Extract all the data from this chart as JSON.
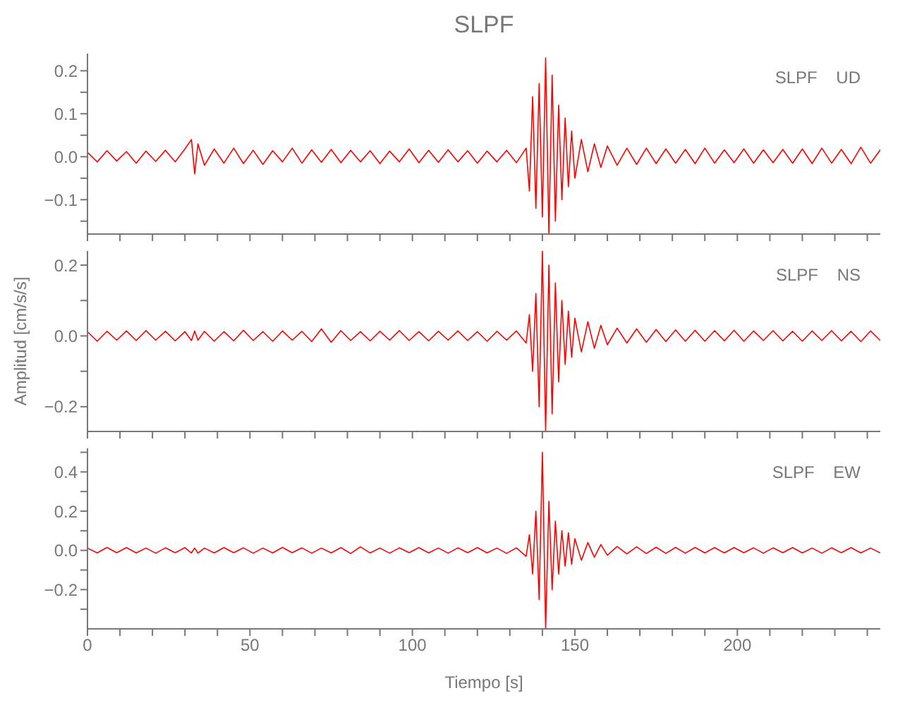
{
  "chart_data": [
    {
      "type": "line",
      "title": "SLPF",
      "annotations": [
        "SLPF UD"
      ],
      "tick_labels": "y",
      "grid": false,
      "marker": "none",
      "line_style": "solid",
      "x": [
        0,
        3,
        6,
        9,
        12,
        15,
        18,
        21,
        24,
        27,
        30,
        32,
        33,
        34,
        36,
        39,
        42,
        45,
        48,
        51,
        54,
        57,
        60,
        63,
        66,
        69,
        72,
        75,
        78,
        81,
        84,
        87,
        90,
        93,
        96,
        99,
        102,
        105,
        108,
        111,
        114,
        117,
        120,
        123,
        126,
        129,
        132,
        135,
        136,
        137,
        138,
        139,
        140,
        141,
        142,
        143,
        144,
        145,
        146,
        147,
        148,
        149,
        150,
        152,
        154,
        156,
        158,
        160,
        163,
        166,
        169,
        172,
        175,
        178,
        181,
        184,
        187,
        190,
        193,
        196,
        199,
        202,
        205,
        208,
        211,
        214,
        217,
        220,
        223,
        226,
        229,
        232,
        235,
        238,
        241,
        244
      ],
      "series": [
        {
          "color": "#ff0000",
          "values": [
            0.01,
            -0.012,
            0.014,
            -0.01,
            0.012,
            -0.015,
            0.013,
            -0.011,
            0.015,
            -0.012,
            0.018,
            0.04,
            -0.04,
            0.03,
            -0.02,
            0.018,
            -0.015,
            0.02,
            -0.016,
            0.015,
            -0.018,
            0.014,
            -0.012,
            0.02,
            -0.015,
            0.016,
            -0.013,
            0.017,
            -0.014,
            0.015,
            -0.012,
            0.014,
            -0.016,
            0.013,
            -0.012,
            0.018,
            -0.014,
            0.015,
            -0.013,
            0.016,
            -0.012,
            0.014,
            -0.015,
            0.013,
            -0.012,
            0.015,
            -0.014,
            0.02,
            -0.08,
            0.14,
            -0.12,
            0.17,
            -0.14,
            0.23,
            -0.18,
            0.19,
            -0.15,
            0.12,
            -0.1,
            0.09,
            -0.07,
            0.06,
            -0.05,
            0.04,
            -0.035,
            0.03,
            -0.025,
            0.025,
            -0.02,
            0.02,
            -0.018,
            0.02,
            -0.016,
            0.018,
            -0.015,
            0.017,
            -0.016,
            0.02,
            -0.015,
            0.016,
            -0.014,
            0.018,
            -0.015,
            0.016,
            -0.014,
            0.017,
            -0.015,
            0.018,
            -0.016,
            0.02,
            -0.015,
            0.017,
            -0.016,
            0.022,
            -0.015,
            0.016
          ]
        }
      ],
      "xlim": [
        0,
        244
      ],
      "xticks": [
        0,
        {
          "value": 10,
          "label": null
        },
        {
          "value": 20,
          "label": null
        },
        {
          "value": 30,
          "label": null
        },
        {
          "value": 40,
          "label": null
        },
        50,
        {
          "value": 60,
          "label": null
        },
        {
          "value": 70,
          "label": null
        },
        {
          "value": 80,
          "label": null
        },
        {
          "value": 90,
          "label": null
        },
        100,
        {
          "value": 110,
          "label": null
        },
        {
          "value": 120,
          "label": null
        },
        {
          "value": 130,
          "label": null
        },
        {
          "value": 140,
          "label": null
        },
        150,
        {
          "value": 160,
          "label": null
        },
        {
          "value": 170,
          "label": null
        },
        {
          "value": 180,
          "label": null
        },
        {
          "value": 190,
          "label": null
        },
        200,
        {
          "value": 210,
          "label": null
        },
        {
          "value": 220,
          "label": null
        },
        {
          "value": 230,
          "label": null
        },
        {
          "value": 240,
          "label": null
        }
      ],
      "ylim": [
        -0.18,
        0.24
      ],
      "yticks": [
        {
          "value": -0.15,
          "label": null
        },
        {
          "value": -0.1,
          "label": "−0.1"
        },
        {
          "value": -0.05,
          "label": null
        },
        {
          "value": 0,
          "label": "0.0"
        },
        {
          "value": 0.05,
          "label": null
        },
        0.1,
        {
          "value": 0.15,
          "label": null
        },
        0.2
      ]
    },
    {
      "type": "line",
      "ylabel": "Amplitud [cm/s/s]",
      "annotations": [
        "SLPF NS"
      ],
      "tick_labels": "y",
      "grid": false,
      "marker": "none",
      "line_style": "solid",
      "x": [
        0,
        3,
        6,
        9,
        12,
        15,
        18,
        21,
        24,
        27,
        30,
        32,
        33,
        34,
        36,
        39,
        42,
        45,
        48,
        51,
        54,
        57,
        60,
        63,
        66,
        69,
        72,
        75,
        78,
        81,
        84,
        87,
        90,
        93,
        96,
        99,
        102,
        105,
        108,
        111,
        114,
        117,
        120,
        123,
        126,
        129,
        132,
        135,
        136,
        137,
        138,
        139,
        140,
        141,
        142,
        143,
        144,
        145,
        146,
        147,
        148,
        149,
        150,
        152,
        154,
        156,
        158,
        160,
        163,
        166,
        169,
        172,
        175,
        178,
        181,
        184,
        187,
        190,
        193,
        196,
        199,
        202,
        205,
        208,
        211,
        214,
        217,
        220,
        223,
        226,
        229,
        232,
        235,
        238,
        241,
        244
      ],
      "series": [
        {
          "color": "#ff0000",
          "values": [
            0.012,
            -0.015,
            0.013,
            -0.012,
            0.014,
            -0.013,
            0.015,
            -0.012,
            0.013,
            -0.014,
            0.012,
            -0.013,
            0.014,
            -0.012,
            0.013,
            -0.015,
            0.012,
            -0.014,
            0.016,
            -0.013,
            0.012,
            -0.015,
            0.014,
            -0.012,
            0.013,
            -0.016,
            0.02,
            -0.018,
            0.015,
            -0.013,
            0.012,
            -0.014,
            0.013,
            -0.012,
            0.015,
            -0.013,
            0.012,
            -0.014,
            0.013,
            -0.012,
            0.014,
            -0.013,
            0.012,
            -0.015,
            0.013,
            -0.012,
            0.014,
            -0.02,
            0.06,
            -0.1,
            0.12,
            -0.2,
            0.24,
            -0.27,
            0.2,
            -0.22,
            0.15,
            -0.13,
            0.1,
            -0.08,
            0.07,
            -0.06,
            0.05,
            -0.045,
            0.04,
            -0.035,
            0.03,
            -0.025,
            0.022,
            -0.02,
            0.02,
            -0.018,
            0.018,
            -0.016,
            0.017,
            -0.015,
            0.016,
            -0.015,
            0.015,
            -0.014,
            0.016,
            -0.015,
            0.014,
            -0.013,
            0.015,
            -0.014,
            0.013,
            -0.015,
            0.014,
            -0.013,
            0.015,
            -0.014,
            0.013,
            -0.016,
            0.014,
            -0.013
          ]
        }
      ],
      "xlim": [
        0,
        244
      ],
      "xticks": [
        0,
        {
          "value": 10,
          "label": null
        },
        {
          "value": 20,
          "label": null
        },
        {
          "value": 30,
          "label": null
        },
        {
          "value": 40,
          "label": null
        },
        50,
        {
          "value": 60,
          "label": null
        },
        {
          "value": 70,
          "label": null
        },
        {
          "value": 80,
          "label": null
        },
        {
          "value": 90,
          "label": null
        },
        100,
        {
          "value": 110,
          "label": null
        },
        {
          "value": 120,
          "label": null
        },
        {
          "value": 130,
          "label": null
        },
        {
          "value": 140,
          "label": null
        },
        150,
        {
          "value": 160,
          "label": null
        },
        {
          "value": 170,
          "label": null
        },
        {
          "value": 180,
          "label": null
        },
        {
          "value": 190,
          "label": null
        },
        200,
        {
          "value": 210,
          "label": null
        },
        {
          "value": 220,
          "label": null
        },
        {
          "value": 230,
          "label": null
        },
        {
          "value": 240,
          "label": null
        }
      ],
      "ylim": [
        -0.27,
        0.24
      ],
      "yticks": [
        {
          "value": -0.2,
          "label": "−0.2"
        },
        {
          "value": -0.1,
          "label": null
        },
        {
          "value": 0,
          "label": "0.0"
        },
        {
          "value": 0.1,
          "label": null
        },
        0.2
      ]
    },
    {
      "type": "line",
      "xlabel": "Tiempo [s]",
      "annotations": [
        "SLPF EW"
      ],
      "grid": false,
      "marker": "none",
      "line_style": "solid",
      "x": [
        0,
        3,
        6,
        9,
        12,
        15,
        18,
        21,
        24,
        27,
        30,
        32,
        33,
        34,
        36,
        39,
        42,
        45,
        48,
        51,
        54,
        57,
        60,
        63,
        66,
        69,
        72,
        75,
        78,
        81,
        84,
        87,
        90,
        93,
        96,
        99,
        102,
        105,
        108,
        111,
        114,
        117,
        120,
        123,
        126,
        129,
        132,
        135,
        136,
        137,
        138,
        139,
        140,
        141,
        142,
        143,
        144,
        145,
        146,
        147,
        148,
        149,
        150,
        152,
        154,
        156,
        158,
        160,
        163,
        166,
        169,
        172,
        175,
        178,
        181,
        184,
        187,
        190,
        193,
        196,
        199,
        202,
        205,
        208,
        211,
        214,
        217,
        220,
        223,
        226,
        229,
        232,
        235,
        238,
        241,
        244
      ],
      "series": [
        {
          "color": "#ff0000",
          "values": [
            0.012,
            -0.013,
            0.015,
            -0.012,
            0.014,
            -0.013,
            0.012,
            -0.014,
            0.013,
            -0.012,
            0.014,
            -0.013,
            0.012,
            -0.014,
            0.012,
            -0.013,
            0.014,
            -0.012,
            0.013,
            -0.014,
            0.012,
            -0.013,
            0.015,
            -0.012,
            0.013,
            -0.014,
            0.012,
            -0.013,
            0.014,
            -0.016,
            0.018,
            -0.013,
            0.012,
            -0.014,
            0.013,
            -0.012,
            0.014,
            -0.013,
            0.012,
            -0.014,
            0.013,
            -0.012,
            0.014,
            -0.013,
            0.012,
            -0.015,
            0.013,
            -0.03,
            0.08,
            -0.12,
            0.2,
            -0.25,
            0.5,
            -0.4,
            0.25,
            -0.2,
            0.15,
            -0.12,
            0.1,
            -0.08,
            0.09,
            -0.07,
            0.06,
            -0.05,
            0.04,
            -0.035,
            0.03,
            -0.025,
            0.02,
            -0.018,
            0.018,
            -0.016,
            0.016,
            -0.015,
            0.015,
            -0.014,
            0.015,
            -0.013,
            0.014,
            -0.013,
            0.014,
            -0.012,
            0.013,
            -0.014,
            0.013,
            -0.012,
            0.014,
            -0.013,
            0.012,
            -0.014,
            0.013,
            -0.012,
            0.014,
            -0.013,
            0.012,
            -0.013
          ]
        }
      ],
      "xlim": [
        0,
        244
      ],
      "xticks": [
        0,
        {
          "value": 10,
          "label": null
        },
        {
          "value": 20,
          "label": null
        },
        {
          "value": 30,
          "label": null
        },
        {
          "value": 40,
          "label": null
        },
        50,
        {
          "value": 60,
          "label": null
        },
        {
          "value": 70,
          "label": null
        },
        {
          "value": 80,
          "label": null
        },
        {
          "value": 90,
          "label": null
        },
        100,
        {
          "value": 110,
          "label": null
        },
        {
          "value": 120,
          "label": null
        },
        {
          "value": 130,
          "label": null
        },
        {
          "value": 140,
          "label": null
        },
        150,
        {
          "value": 160,
          "label": null
        },
        {
          "value": 170,
          "label": null
        },
        {
          "value": 180,
          "label": null
        },
        {
          "value": 190,
          "label": null
        },
        200,
        {
          "value": 210,
          "label": null
        },
        {
          "value": 220,
          "label": null
        },
        {
          "value": 230,
          "label": null
        },
        {
          "value": 240,
          "label": null
        }
      ],
      "ylim": [
        -0.4,
        0.52
      ],
      "yticks": [
        {
          "value": -0.3,
          "label": null
        },
        {
          "value": -0.2,
          "label": "−0.2"
        },
        {
          "value": -0.1,
          "label": null
        },
        {
          "value": 0,
          "label": "0.0"
        },
        {
          "value": 0.1,
          "label": null
        },
        0.2,
        {
          "value": 0.3,
          "label": null
        },
        0.4,
        {
          "value": 0.5,
          "label": null
        }
      ]
    }
  ]
}
